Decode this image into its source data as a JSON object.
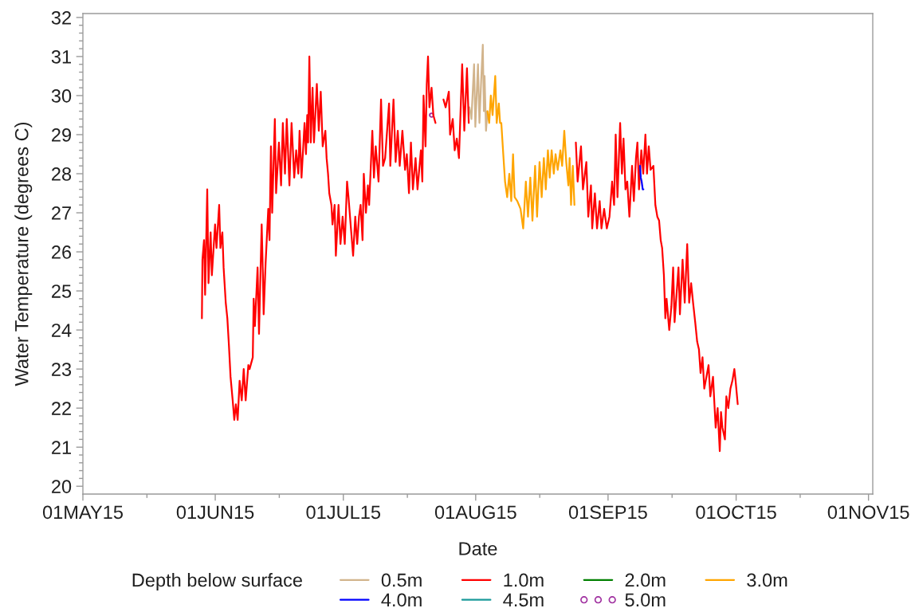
{
  "chart_data": {
    "type": "line",
    "xlabel": "Date",
    "ylabel": "Water Temperature (degrees C)",
    "legend_title": "Depth below surface",
    "legend": "bottom",
    "xlim": [
      "2015-05-01",
      "2015-11-02"
    ],
    "xticks": [
      {
        "value": "2015-05-01",
        "label": "01MAY15"
      },
      {
        "value": "2015-05-16",
        "label": null
      },
      {
        "value": "2015-06-01",
        "label": "01JUN15"
      },
      {
        "value": "2015-06-16",
        "label": null
      },
      {
        "value": "2015-07-01",
        "label": "01JUL15"
      },
      {
        "value": "2015-07-16",
        "label": null
      },
      {
        "value": "2015-08-01",
        "label": "01AUG15"
      },
      {
        "value": "2015-08-16",
        "label": null
      },
      {
        "value": "2015-09-01",
        "label": "01SEP15"
      },
      {
        "value": "2015-09-16",
        "label": null
      },
      {
        "value": "2015-10-01",
        "label": "01OCT15"
      },
      {
        "value": "2015-10-16",
        "label": null
      },
      {
        "value": "2015-11-01",
        "label": "01NOV15"
      }
    ],
    "ylim": [
      19.8,
      32.1
    ],
    "yticks": [
      20,
      {
        "value": 20.2,
        "label": null
      },
      {
        "value": 20.4,
        "label": null
      },
      {
        "value": 20.6,
        "label": null
      },
      {
        "value": 20.8,
        "label": null
      },
      21,
      {
        "value": 21.2,
        "label": null
      },
      {
        "value": 21.4,
        "label": null
      },
      {
        "value": 21.6,
        "label": null
      },
      {
        "value": 21.8,
        "label": null
      },
      22,
      {
        "value": 22.2,
        "label": null
      },
      {
        "value": 22.4,
        "label": null
      },
      {
        "value": 22.6,
        "label": null
      },
      {
        "value": 22.8,
        "label": null
      },
      23,
      {
        "value": 23.2,
        "label": null
      },
      {
        "value": 23.4,
        "label": null
      },
      {
        "value": 23.6,
        "label": null
      },
      {
        "value": 23.8,
        "label": null
      },
      24,
      {
        "value": 24.2,
        "label": null
      },
      {
        "value": 24.4,
        "label": null
      },
      {
        "value": 24.6,
        "label": null
      },
      {
        "value": 24.8,
        "label": null
      },
      25,
      {
        "value": 25.2,
        "label": null
      },
      {
        "value": 25.4,
        "label": null
      },
      {
        "value": 25.6,
        "label": null
      },
      {
        "value": 25.8,
        "label": null
      },
      26,
      {
        "value": 26.2,
        "label": null
      },
      {
        "value": 26.4,
        "label": null
      },
      {
        "value": 26.6,
        "label": null
      },
      {
        "value": 26.8,
        "label": null
      },
      27,
      {
        "value": 27.2,
        "label": null
      },
      {
        "value": 27.4,
        "label": null
      },
      {
        "value": 27.6,
        "label": null
      },
      {
        "value": 27.8,
        "label": null
      },
      28,
      {
        "value": 28.2,
        "label": null
      },
      {
        "value": 28.4,
        "label": null
      },
      {
        "value": 28.6,
        "label": null
      },
      {
        "value": 28.8,
        "label": null
      },
      29,
      {
        "value": 29.2,
        "label": null
      },
      {
        "value": 29.4,
        "label": null
      },
      {
        "value": 29.6,
        "label": null
      },
      {
        "value": 29.8,
        "label": null
      },
      30,
      {
        "value": 30.2,
        "label": null
      },
      {
        "value": 30.4,
        "label": null
      },
      {
        "value": 30.6,
        "label": null
      },
      {
        "value": 30.8,
        "label": null
      },
      31,
      {
        "value": 31.2,
        "label": null
      },
      {
        "value": 31.4,
        "label": null
      },
      {
        "value": 31.6,
        "label": null
      },
      {
        "value": 31.8,
        "label": null
      },
      32
    ],
    "series": [
      {
        "name": "0.5m",
        "color": "#d2b48c",
        "x": [
          "2015-07-30T13:00",
          "2015-07-31T00:00",
          "2015-07-31T15:00",
          "2015-07-31T22:00",
          "2015-08-01T13:00",
          "2015-08-01T21:00",
          "2015-08-02T07:00",
          "2015-08-02T16:00",
          "2015-08-02T22:00",
          "2015-08-03T02:00",
          "2015-08-03T10:00",
          "2015-08-03T18:00"
        ],
        "values": [
          29.7,
          29.4,
          30.8,
          29.2,
          30.8,
          29.3,
          30.4,
          31.3,
          29.6,
          30.5,
          29.1,
          29.6
        ]
      },
      {
        "name": "1.0m",
        "color": "#ff0000",
        "x": [
          "2015-05-28T21:00",
          "2015-05-29T00:00",
          "2015-05-29T09:00",
          "2015-05-29T15:00",
          "2015-05-30T03:00",
          "2015-05-30T10:00",
          "2015-05-30T22:00",
          "2015-05-31T05:00",
          "2015-05-31T23:00",
          "2015-06-01T07:00",
          "2015-06-01T22:00",
          "2015-06-02T05:00",
          "2015-06-02T16:00",
          "2015-06-02T23:00",
          "2015-06-03T11:00",
          "2015-06-03T20:00",
          "2015-06-04T05:00",
          "2015-06-04T14:00",
          "2015-06-05T02:00",
          "2015-06-05T11:00",
          "2015-06-05T20:00",
          "2015-06-06T06:00",
          "2015-06-06T17:00",
          "2015-06-07T05:00",
          "2015-06-07T16:00",
          "2015-06-08T03:00",
          "2015-06-08T18:00",
          "2015-06-09T01:00",
          "2015-06-09T19:00",
          "2015-06-10T00:00",
          "2015-06-10T07:00",
          "2015-06-10T22:00",
          "2015-06-11T06:00",
          "2015-06-11T21:00",
          "2015-06-12T04:00",
          "2015-06-12T08:00",
          "2015-06-12T19:00",
          "2015-06-13T10:00",
          "2015-06-13T17:00",
          "2015-06-14T01:00",
          "2015-06-14T08:00",
          "2015-06-14T23:00",
          "2015-06-15T06:00",
          "2015-06-15T22:00",
          "2015-06-16T10:00",
          "2015-06-16T20:00",
          "2015-06-17T08:00",
          "2015-06-17T18:00",
          "2015-06-18T09:00",
          "2015-06-18T21:00",
          "2015-06-19T12:00",
          "2015-06-19T23:00",
          "2015-06-20T11:00",
          "2015-06-20T18:00",
          "2015-06-21T05:00",
          "2015-06-21T22:00",
          "2015-06-22T06:00",
          "2015-06-22T13:00",
          "2015-06-22T18:00",
          "2015-06-23T01:00",
          "2015-06-23T09:00",
          "2015-06-23T19:00",
          "2015-06-24T03:00",
          "2015-06-24T19:00",
          "2015-06-25T06:00",
          "2015-06-25T17:00",
          "2015-06-26T04:00",
          "2015-06-26T19:00",
          "2015-06-27T02:00",
          "2015-06-27T10:00",
          "2015-06-27T17:00",
          "2015-06-28T05:00",
          "2015-06-28T11:00",
          "2015-06-28T23:00",
          "2015-06-29T06:00",
          "2015-06-29T21:00",
          "2015-06-30T08:00",
          "2015-06-30T20:00",
          "2015-07-01T08:00",
          "2015-07-01T21:00",
          "2015-07-02T05:00",
          "2015-07-02T17:00",
          "2015-07-03T07:00",
          "2015-07-03T19:00",
          "2015-07-04T06:00",
          "2015-07-04T16:00",
          "2015-07-05T01:00",
          "2015-07-05T12:00",
          "2015-07-05T19:00",
          "2015-07-06T07:00",
          "2015-07-06T18:00",
          "2015-07-07T01:00",
          "2015-07-07T19:00",
          "2015-07-08T04:00",
          "2015-07-08T14:00",
          "2015-07-09T06:00",
          "2015-07-09T20:00",
          "2015-07-10T07:00",
          "2015-07-10T19:00",
          "2015-07-11T17:00",
          "2015-07-12T00:00",
          "2015-07-12T18:00",
          "2015-07-13T06:00",
          "2015-07-13T18:00",
          "2015-07-14T05:00",
          "2015-07-14T20:00",
          "2015-07-15T11:00",
          "2015-07-15T21:00",
          "2015-07-16T09:00",
          "2015-07-16T20:00",
          "2015-07-17T07:00",
          "2015-07-17T22:00",
          "2015-07-18T09:00",
          "2015-07-19T04:00",
          "2015-07-19T12:00",
          "2015-07-19T19:00",
          "2015-07-20T06:00",
          "2015-07-20T13:00",
          "2015-07-20T20:00",
          "2015-07-21T04:00",
          "2015-07-21T16:00",
          "2015-07-22T02:00",
          "2015-07-22T14:00",
          "2015-07-23T12:00",
          "2015-07-24T11:00",
          "2015-07-24T23:00",
          "2015-07-25T17:00",
          "2015-07-26T00:00",
          "2015-07-26T15:00",
          "2015-07-27T02:00",
          "2015-07-27T14:00",
          "2015-07-28T02:00",
          "2015-07-28T20:00",
          "2015-07-29T08:00",
          "2015-07-29T23:00",
          "2015-07-30T09:00",
          "2015-08-03T00:00",
          "2015-08-24T11:00",
          "2015-08-24T21:00",
          "2015-08-25T16:00",
          "2015-08-26T03:00",
          "2015-08-26T22:00",
          "2015-08-27T09:00",
          "2015-08-28T00:00",
          "2015-08-28T07:00",
          "2015-08-28T22:00",
          "2015-08-29T10:00",
          "2015-08-30T01:00",
          "2015-08-30T11:00",
          "2015-08-31T02:00",
          "2015-08-31T17:00",
          "2015-09-01T08:00",
          "2015-09-01T23:00",
          "2015-09-02T10:00",
          "2015-09-02T19:00",
          "2015-09-03T05:00",
          "2015-09-03T20:00",
          "2015-09-04T06:00",
          "2015-09-04T15:00",
          "2015-09-05T02:00",
          "2015-09-05T12:00",
          "2015-09-06T00:00",
          "2015-09-06T15:00",
          "2015-09-07T01:00",
          "2015-09-07T13:00",
          "2015-09-07T21:00",
          "2015-09-08T06:00",
          "2015-09-08T19:00",
          "2015-09-09T06:00",
          "2015-09-09T18:00",
          "2015-09-10T03:00",
          "2015-09-10T13:00",
          "2015-09-10T23:00",
          "2015-09-11T15:00",
          "2015-09-12T02:00",
          "2015-09-12T13:00",
          "2015-09-12T23:00",
          "2015-09-13T08:00",
          "2015-09-13T16:00",
          "2015-09-14T02:00",
          "2015-09-14T10:00",
          "2015-09-14T17:00",
          "2015-09-15T08:00",
          "2015-09-15T20:00",
          "2015-09-16T06:00",
          "2015-09-16T14:00",
          "2015-09-17T12:00",
          "2015-09-17T20:00",
          "2015-09-18T11:00",
          "2015-09-18T23:00",
          "2015-09-19T13:00",
          "2015-09-20T00:00",
          "2015-09-20T11:00",
          "2015-09-20T22:00",
          "2015-09-21T10:00",
          "2015-09-21T21:00",
          "2015-09-22T07:00",
          "2015-09-22T16:00",
          "2015-09-23T03:00",
          "2015-09-23T13:00",
          "2015-09-24T13:00",
          "2015-09-24T23:00",
          "2015-09-25T14:00",
          "2015-09-26T05:00",
          "2015-09-26T16:00",
          "2015-09-27T04:00",
          "2015-09-27T11:00",
          "2015-09-27T19:00",
          "2015-09-28T09:00",
          "2015-09-28T17:00",
          "2015-09-29T04:00",
          "2015-09-29T16:00",
          "2015-09-30T03:00",
          "2015-09-30T14:00",
          "2015-09-30T21:00",
          "2015-10-01T09:00"
        ],
        "values": [
          24.3,
          25.8,
          26.3,
          24.9,
          27.6,
          25.2,
          26.5,
          25.4,
          26.7,
          26.1,
          27.2,
          26.1,
          26.5,
          25.6,
          24.7,
          24.3,
          23.6,
          22.8,
          22.2,
          21.7,
          22.1,
          21.7,
          22.7,
          22.2,
          23.0,
          22.2,
          23.1,
          23.0,
          23.3,
          24.8,
          24.1,
          25.6,
          23.9,
          26.7,
          25.4,
          24.4,
          25.7,
          27.1,
          26.3,
          28.7,
          27.0,
          29.4,
          27.5,
          28.8,
          27.7,
          29.3,
          28.0,
          29.4,
          27.7,
          29.3,
          27.9,
          28.6,
          28.0,
          29.1,
          27.9,
          29.3,
          28.5,
          29.5,
          28.8,
          31.0,
          28.8,
          30.2,
          28.8,
          30.3,
          29.1,
          30.1,
          28.7,
          29.1,
          28.4,
          28.0,
          27.5,
          27.2,
          26.7,
          27.2,
          25.9,
          27.2,
          26.2,
          26.9,
          26.2,
          27.8,
          27.4,
          26.7,
          25.9,
          26.9,
          26.2,
          26.9,
          27.2,
          26.3,
          28.0,
          27.0,
          27.7,
          27.2,
          29.1,
          27.9,
          28.7,
          27.8,
          29.9,
          28.2,
          28.4,
          29.8,
          28.2,
          29.9,
          28.3,
          29.1,
          28.2,
          29.1,
          28.1,
          28.5,
          27.5,
          28.8,
          27.6,
          28.4,
          27.6,
          28.6,
          27.8,
          30.0,
          28.7,
          30.3,
          31.0,
          29.7,
          30.2,
          29.5,
          29.3,
          null,
          29.9,
          29.7,
          30.1,
          29.0,
          29.4,
          28.6,
          28.9,
          28.4,
          30.8,
          29.1,
          30.7,
          29.3,
          null,
          28.8,
          27.8,
          28.7,
          27.6,
          28.3,
          26.9,
          27.7,
          26.6,
          27.5,
          26.6,
          27.3,
          26.6,
          27.1,
          26.6,
          26.9,
          27.8,
          27.2,
          29.0,
          27.4,
          29.3,
          28.0,
          28.9,
          27.6,
          27.8,
          26.9,
          28.2,
          27.3,
          28.4,
          28.8,
          27.6,
          28.6,
          28.0,
          29.0,
          28.0,
          28.7,
          28.1,
          28.2,
          27.2,
          26.9,
          26.8,
          26.3,
          26.1,
          25.4,
          24.3,
          24.8,
          24.0,
          24.6,
          25.6,
          24.2,
          25.6,
          24.4,
          25.8,
          24.7,
          26.2,
          24.7,
          25.2,
          24.7,
          24.2,
          23.7,
          23.5,
          22.9,
          23.3,
          22.5,
          23.1,
          22.3,
          22.8,
          21.5,
          22.0,
          20.9,
          21.9,
          21.5,
          21.2,
          22.3,
          22.0,
          22.5,
          22.7,
          23.0,
          22.7,
          22.1
        ]
      },
      {
        "name": "2.0m",
        "color": "#008000"
      },
      {
        "name": "3.0m",
        "color": "#ffa500",
        "x": [
          "2015-08-03T18:00",
          "2015-08-04T04:00",
          "2015-08-04T13:00",
          "2015-08-04T23:00",
          "2015-08-05T14:00",
          "2015-08-05T22:00",
          "2015-08-06T10:00",
          "2015-08-06T17:00",
          "2015-08-07T00:00",
          "2015-08-07T11:00",
          "2015-08-07T21:00",
          "2015-08-08T09:00",
          "2015-08-08T21:00",
          "2015-08-09T08:00",
          "2015-08-09T18:00",
          "2015-08-10T03:00",
          "2015-08-10T18:00",
          "2015-08-11T12:00",
          "2015-08-12T03:00",
          "2015-08-12T18:00",
          "2015-08-13T06:00",
          "2015-08-13T19:00",
          "2015-08-14T07:00",
          "2015-08-14T22:00",
          "2015-08-15T09:00",
          "2015-08-15T23:00",
          "2015-08-16T11:00",
          "2015-08-16T23:00",
          "2015-08-17T10:00",
          "2015-08-17T22:00",
          "2015-08-18T08:00",
          "2015-08-18T19:00",
          "2015-08-19T07:00",
          "2015-08-19T17:00",
          "2015-08-20T05:00",
          "2015-08-20T20:00",
          "2015-08-21T06:00",
          "2015-08-21T18:00",
          "2015-08-22T05:00",
          "2015-08-22T17:00",
          "2015-08-23T00:00",
          "2015-08-23T08:00",
          "2015-08-23T18:00",
          "2015-08-24T03:00"
        ],
        "values": [
          29.6,
          29.3,
          30.0,
          29.5,
          30.5,
          29.3,
          29.8,
          29.3,
          29.3,
          28.5,
          27.8,
          27.4,
          28.0,
          27.3,
          28.5,
          27.4,
          27.3,
          27.1,
          26.6,
          27.8,
          26.9,
          27.9,
          26.8,
          28.2,
          26.9,
          28.3,
          27.4,
          28.4,
          27.6,
          28.6,
          27.9,
          28.6,
          28.0,
          28.5,
          28.1,
          28.6,
          28.2,
          29.1,
          28.3,
          27.7,
          28.4,
          27.2,
          28.2,
          27.2
        ]
      },
      {
        "name": "4.0m",
        "color": "#0000ff",
        "x": [
          "2015-09-08T12:00",
          "2015-09-08T16:00",
          "2015-09-08T21:00",
          "2015-09-09T03:00",
          "2015-09-09T07:00"
        ],
        "values": [
          28.2,
          27.9,
          27.8,
          27.6,
          27.6
        ]
      },
      {
        "name": "4.5m",
        "color": "#1a9a9a"
      },
      {
        "name": "5.0m",
        "type": "scatter",
        "marker": "circle",
        "color": "#a030a0",
        "x": [
          "2015-07-21T16:00"
        ],
        "values": [
          29.5
        ]
      }
    ]
  }
}
